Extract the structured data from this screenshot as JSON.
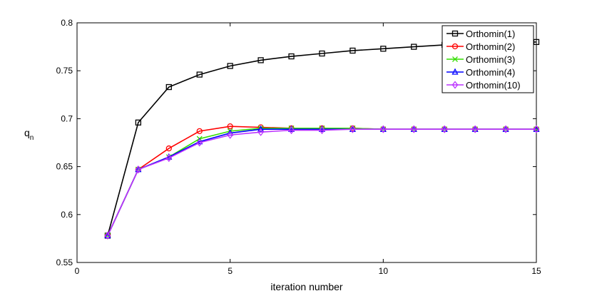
{
  "chart_data": {
    "type": "line",
    "xlabel": "iteration number",
    "ylabel": "q",
    "ylabel_sub": "n",
    "xlim": [
      0,
      15
    ],
    "ylim": [
      0.55,
      0.8
    ],
    "xticks": [
      0,
      5,
      10,
      15
    ],
    "yticks": [
      0.55,
      0.6,
      0.65,
      0.7,
      0.75,
      0.8
    ],
    "xtick_labels": [
      "0",
      "5",
      "10",
      "15"
    ],
    "ytick_labels": [
      "0.55",
      "0.6",
      "0.65",
      "0.7",
      "0.75",
      "0.8"
    ],
    "grid": false,
    "legend_position": "top-right",
    "x": [
      1,
      2,
      3,
      4,
      5,
      6,
      7,
      8,
      9,
      10,
      11,
      12,
      13,
      14,
      15
    ],
    "series": [
      {
        "name": "Orthomin(1)",
        "color": "#000000",
        "marker": "square",
        "values": [
          0.578,
          0.696,
          0.733,
          0.746,
          0.755,
          0.761,
          0.765,
          0.768,
          0.771,
          0.773,
          0.775,
          0.777,
          0.778,
          0.779,
          0.78
        ]
      },
      {
        "name": "Orthomin(2)",
        "color": "#ff0000",
        "marker": "circle",
        "values": [
          0.578,
          0.647,
          0.669,
          0.687,
          0.692,
          0.691,
          0.69,
          0.69,
          0.69,
          0.689,
          0.689,
          0.689,
          0.689,
          0.689,
          0.689
        ]
      },
      {
        "name": "Orthomin(3)",
        "color": "#33dd00",
        "marker": "x",
        "values": [
          0.578,
          0.647,
          0.66,
          0.679,
          0.687,
          0.69,
          0.69,
          0.69,
          0.69,
          0.689,
          0.689,
          0.689,
          0.689,
          0.689,
          0.689
        ]
      },
      {
        "name": "Orthomin(4)",
        "color": "#0000ff",
        "marker": "triangle",
        "values": [
          0.578,
          0.647,
          0.66,
          0.676,
          0.685,
          0.689,
          0.689,
          0.689,
          0.689,
          0.689,
          0.689,
          0.689,
          0.689,
          0.689,
          0.689
        ]
      },
      {
        "name": "Orthomin(10)",
        "color": "#bb33ff",
        "marker": "diamond",
        "values": [
          0.578,
          0.647,
          0.659,
          0.675,
          0.683,
          0.686,
          0.688,
          0.688,
          0.689,
          0.689,
          0.689,
          0.689,
          0.689,
          0.689,
          0.689
        ]
      }
    ]
  }
}
